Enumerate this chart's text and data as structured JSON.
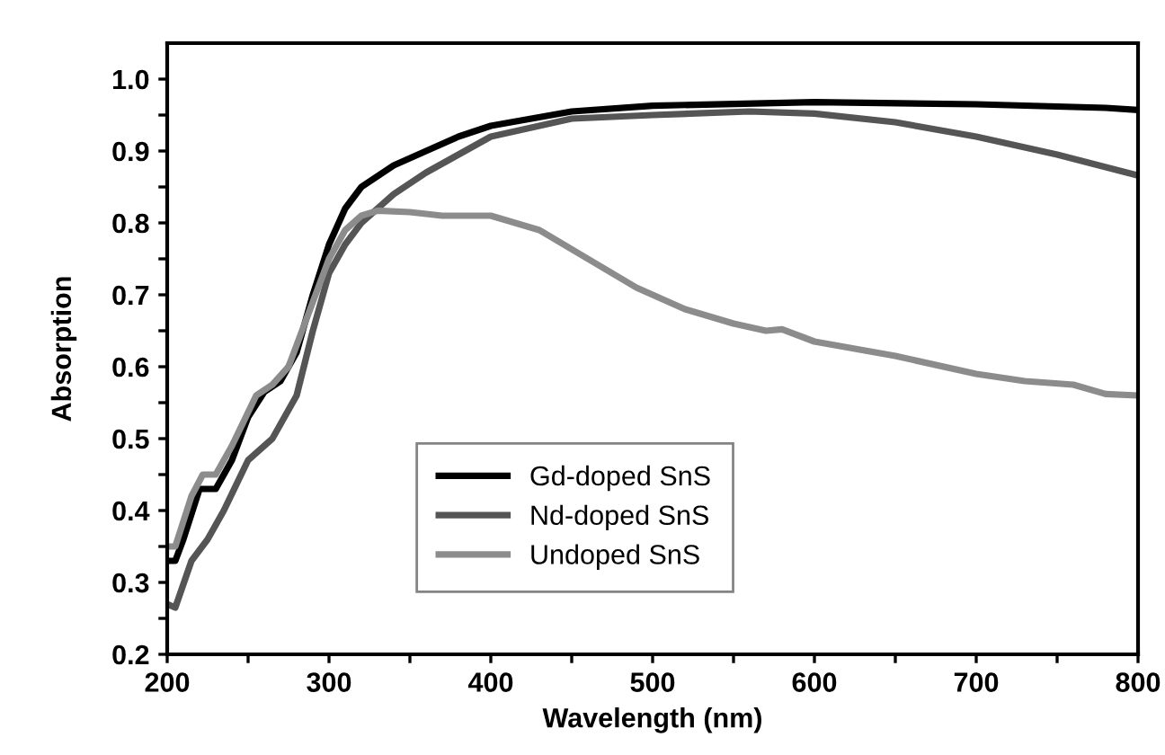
{
  "chart_data": {
    "type": "line",
    "xlabel": "Wavelength (nm)",
    "ylabel": "Absorption",
    "xlim": [
      200,
      800
    ],
    "ylim": [
      0.2,
      1.05
    ],
    "xticks": [
      200,
      {
        "value": 250,
        "label": null
      },
      300,
      {
        "value": 350,
        "label": null
      },
      400,
      {
        "value": 450,
        "label": null
      },
      500,
      {
        "value": 550,
        "label": null
      },
      600,
      {
        "value": 650,
        "label": null
      },
      700,
      {
        "value": 750,
        "label": null
      },
      800
    ],
    "yticks": [
      0.2,
      {
        "value": 0.25,
        "label": null
      },
      0.3,
      {
        "value": 0.35,
        "label": null
      },
      0.4,
      {
        "value": 0.45,
        "label": null
      },
      0.5,
      {
        "value": 0.55,
        "label": null
      },
      0.6,
      {
        "value": 0.65,
        "label": null
      },
      0.7,
      {
        "value": 0.75,
        "label": null
      },
      0.8,
      {
        "value": 0.85,
        "label": null
      },
      0.9,
      {
        "value": 0.95,
        "label": null
      },
      {
        "value": 1.0,
        "label": "1.0"
      }
    ],
    "grid": false,
    "legend": "bottom",
    "marker": "none",
    "line_style": "solid",
    "series": [
      {
        "name": "Gd-doped SnS",
        "color": "#000000",
        "x": [
          200,
          205,
          210,
          220,
          230,
          240,
          250,
          260,
          270,
          280,
          290,
          300,
          310,
          320,
          340,
          360,
          380,
          400,
          450,
          500,
          600,
          700,
          780,
          800
        ],
        "values": [
          0.33,
          0.33,
          0.36,
          0.43,
          0.43,
          0.47,
          0.53,
          0.565,
          0.58,
          0.62,
          0.7,
          0.77,
          0.82,
          0.85,
          0.88,
          0.9,
          0.92,
          0.935,
          0.955,
          0.963,
          0.968,
          0.965,
          0.96,
          0.957
        ]
      },
      {
        "name": "Nd-doped SnS",
        "color": "#555555",
        "x": [
          200,
          205,
          215,
          225,
          235,
          250,
          265,
          280,
          290,
          300,
          310,
          320,
          340,
          360,
          380,
          400,
          450,
          500,
          560,
          600,
          650,
          700,
          750,
          800
        ],
        "values": [
          0.27,
          0.265,
          0.33,
          0.36,
          0.4,
          0.47,
          0.5,
          0.56,
          0.65,
          0.73,
          0.77,
          0.8,
          0.84,
          0.87,
          0.895,
          0.92,
          0.945,
          0.95,
          0.955,
          0.952,
          0.94,
          0.92,
          0.895,
          0.866
        ]
      },
      {
        "name": "Undoped SnS",
        "color": "#8c8c8c",
        "x": [
          200,
          205,
          215,
          222,
          230,
          240,
          255,
          265,
          275,
          290,
          300,
          310,
          320,
          330,
          350,
          370,
          400,
          430,
          460,
          490,
          520,
          550,
          570,
          580,
          600,
          650,
          700,
          730,
          760,
          780,
          800
        ],
        "values": [
          0.35,
          0.35,
          0.42,
          0.45,
          0.45,
          0.49,
          0.56,
          0.575,
          0.6,
          0.69,
          0.75,
          0.79,
          0.81,
          0.817,
          0.815,
          0.81,
          0.81,
          0.79,
          0.75,
          0.71,
          0.68,
          0.66,
          0.65,
          0.652,
          0.635,
          0.615,
          0.59,
          0.58,
          0.575,
          0.562,
          0.56
        ]
      }
    ]
  }
}
